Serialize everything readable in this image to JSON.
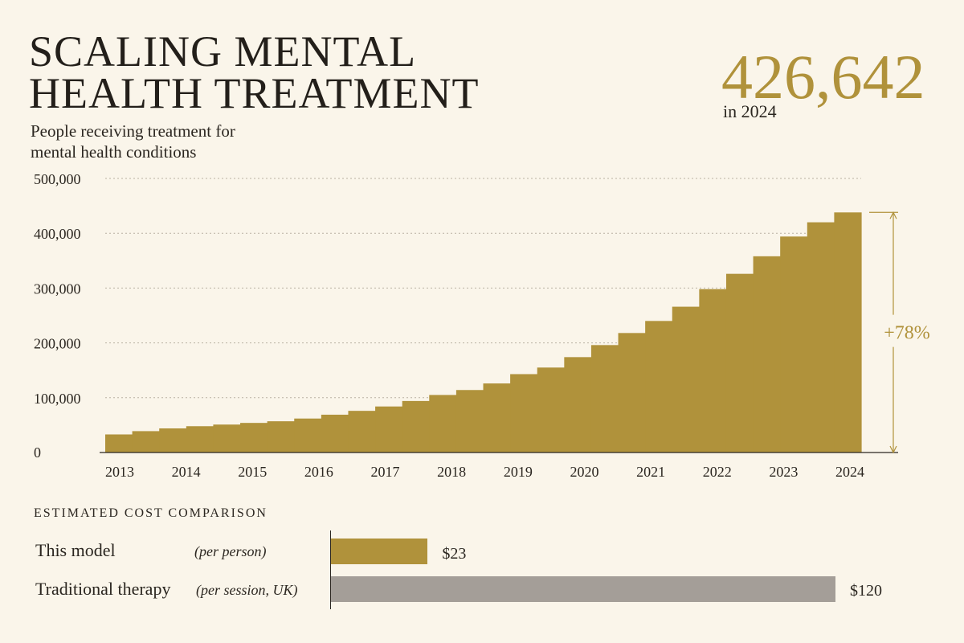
{
  "header": {
    "title_line1": "SCALING MENTAL",
    "title_line2": "HEALTH TREATMENT",
    "subtitle_line1": "People receiving treatment for",
    "subtitle_line2": "mental health conditions",
    "headline_value": "426,642",
    "headline_caption": "in 2024"
  },
  "colors": {
    "gold": "#b0923b",
    "grey": "#a49e98",
    "text": "#2b2620",
    "background": "#faf5ea"
  },
  "chart_data": [
    {
      "type": "bar",
      "subtitle": "People receiving treatment for mental health conditions",
      "ylim": [
        0,
        500000
      ],
      "y_ticks": [
        0,
        100000,
        200000,
        300000,
        400000,
        500000
      ],
      "y_tick_labels": [
        "0",
        "100,000",
        "200,000",
        "300,000",
        "400,000",
        "500,000"
      ],
      "x_tick_labels": [
        "2013",
        "2014",
        "2015",
        "2016",
        "2017",
        "2018",
        "2019",
        "2020",
        "2021",
        "2022",
        "2023",
        "2024"
      ],
      "grid": true,
      "values": [
        33000,
        39000,
        44000,
        48000,
        51000,
        54000,
        57000,
        62000,
        69000,
        76000,
        84000,
        94000,
        105000,
        114000,
        126000,
        143000,
        155000,
        174000,
        196000,
        218000,
        240000,
        266000,
        298000,
        326000,
        358000,
        394000,
        420000,
        438000
      ],
      "annotation": "+78%"
    },
    {
      "type": "bar",
      "orientation": "horizontal",
      "title": "ESTIMATED COST COMPARISON",
      "categories": [
        "This model",
        "Traditional therapy"
      ],
      "notes": [
        "(per person)",
        "(per session, UK)"
      ],
      "values": [
        23,
        120
      ],
      "value_labels": [
        "$23",
        "$120"
      ],
      "colors": [
        "#b0923b",
        "#a49e98"
      ]
    }
  ]
}
